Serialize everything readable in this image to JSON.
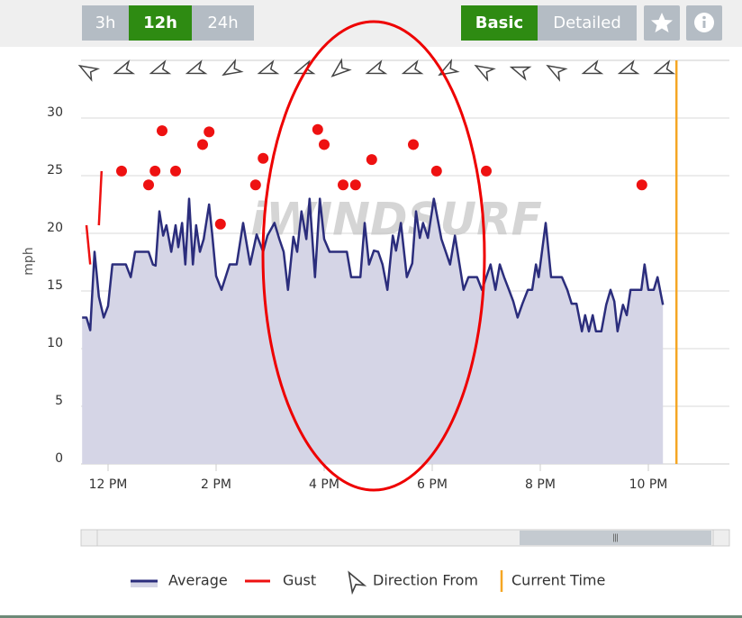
{
  "controls": {
    "ranges": [
      "3h",
      "12h",
      "24h"
    ],
    "active_range": 1,
    "views": [
      "Basic",
      "Detailed"
    ],
    "active_view": 0
  },
  "chart_data": {
    "type": "line",
    "watermark": "iWINDSURF",
    "y_label": "mph",
    "xlim": [
      11.5,
      23.5
    ],
    "ylim": [
      0,
      35
    ],
    "xticks": [
      {
        "value": 12,
        "label": "12 PM"
      },
      {
        "value": 14,
        "label": "2 PM"
      },
      {
        "value": 16,
        "label": "4 PM"
      },
      {
        "value": 18,
        "label": "6 PM"
      },
      {
        "value": 20,
        "label": "8 PM"
      },
      {
        "value": 22,
        "label": "10 PM"
      }
    ],
    "yticks": [
      0,
      5,
      10,
      15,
      20,
      25,
      30
    ],
    "grid": true,
    "series": [
      {
        "name": "Average",
        "type": "area",
        "color": "#2b2d7c",
        "fill": "#d5d5e6",
        "x": [
          11.52,
          11.6,
          11.67,
          11.75,
          11.83,
          11.92,
          12,
          12.08,
          12.33,
          12.42,
          12.5,
          12.75,
          12.83,
          12.88,
          12.95,
          13.02,
          13.08,
          13.17,
          13.25,
          13.3,
          13.37,
          13.43,
          13.5,
          13.57,
          13.63,
          13.7,
          13.77,
          13.87,
          13.93,
          14,
          14.1,
          14.25,
          14.38,
          14.5,
          14.63,
          14.75,
          14.87,
          14.95,
          15.08,
          15.17,
          15.25,
          15.33,
          15.43,
          15.5,
          15.58,
          15.67,
          15.73,
          15.83,
          15.92,
          16,
          16.1,
          16.42,
          16.5,
          16.67,
          16.75,
          16.83,
          16.92,
          17,
          17.08,
          17.17,
          17.27,
          17.33,
          17.42,
          17.53,
          17.63,
          17.7,
          17.77,
          17.83,
          17.92,
          18.03,
          18.17,
          18.33,
          18.42,
          18.58,
          18.67,
          18.83,
          18.92,
          19,
          19.08,
          19.17,
          19.25,
          19.33,
          19.42,
          19.5,
          19.58,
          19.67,
          19.77,
          19.85,
          19.92,
          19.97,
          20.1,
          20.2,
          20.4,
          20.5,
          20.58,
          20.67,
          20.77,
          20.83,
          20.9,
          20.97,
          21.03,
          21.13,
          21.22,
          21.3,
          21.37,
          21.43,
          21.53,
          21.6,
          21.67,
          21.87,
          21.93,
          22,
          22.1,
          22.17,
          22.27
        ],
        "values": [
          12.7,
          12.7,
          11.6,
          18.4,
          14.5,
          12.7,
          13.7,
          17.3,
          17.3,
          16.2,
          18.4,
          18.4,
          17.3,
          17.2,
          21.9,
          19.8,
          20.7,
          18.4,
          20.7,
          18.8,
          20.9,
          17.3,
          23.0,
          17.3,
          20.7,
          18.4,
          19.5,
          22.5,
          19.8,
          16.3,
          15.1,
          17.3,
          17.3,
          20.9,
          17.3,
          19.9,
          18.4,
          19.8,
          20.9,
          19.5,
          18.4,
          15.1,
          19.7,
          18.4,
          21.9,
          19.5,
          23.0,
          16.2,
          23.0,
          19.5,
          18.4,
          18.4,
          16.2,
          16.2,
          20.9,
          17.3,
          18.5,
          18.4,
          17.3,
          15.1,
          19.8,
          18.5,
          20.9,
          16.2,
          17.4,
          21.9,
          19.6,
          20.9,
          19.6,
          23.0,
          19.5,
          17.3,
          19.8,
          15.1,
          16.2,
          16.2,
          15.1,
          16.2,
          17.3,
          15.1,
          17.3,
          16.2,
          15.1,
          14.1,
          12.7,
          13.9,
          15.1,
          15.1,
          17.3,
          16.2,
          20.9,
          16.2,
          16.2,
          15.1,
          13.9,
          13.9,
          11.5,
          12.9,
          11.5,
          12.9,
          11.5,
          11.5,
          13.8,
          15.1,
          14.1,
          11.5,
          13.8,
          12.9,
          15.1,
          15.1,
          17.3,
          15.1,
          15.1,
          16.2,
          13.8
        ]
      },
      {
        "name": "Gust",
        "type": "line",
        "color": "#ee1111",
        "x": [
          11.6,
          11.67,
          11.75,
          11.83,
          11.88,
          12.1,
          12.25,
          12.5,
          12.75,
          12.8,
          12.87,
          12.93,
          13,
          13.1,
          13.25,
          13.5,
          13.75,
          13.8,
          13.87,
          14,
          14.08,
          14.4,
          14.73,
          14.8,
          14.87,
          15.5,
          15.88,
          15.94,
          16,
          16.2,
          16.35,
          16.45,
          16.58,
          16.7,
          16.88,
          17.3,
          17.65,
          17.9,
          18.08,
          18.5,
          19,
          20,
          21.88
        ],
        "values": [
          20.7,
          17.3,
          null,
          20.7,
          25.4,
          null,
          25.4,
          null,
          24.2,
          null,
          25.4,
          null,
          28.9,
          null,
          25.4,
          null,
          27.7,
          null,
          28.8,
          null,
          20.8,
          null,
          24.2,
          null,
          26.5,
          null,
          29.0,
          null,
          27.7,
          null,
          24.2,
          null,
          24.2,
          null,
          26.4,
          null,
          27.7,
          null,
          25.4,
          null,
          25.4,
          null,
          24.2
        ]
      },
      {
        "name": "Direction From",
        "type": "direction",
        "color": "#444444",
        "x": [
          11.62,
          12.28,
          12.95,
          13.62,
          14.28,
          14.95,
          15.62,
          16.28,
          16.95,
          17.62,
          18.28,
          18.95,
          19.62,
          20.28,
          20.95,
          21.62,
          22.28
        ],
        "values": [
          300,
          250,
          250,
          250,
          240,
          250,
          250,
          230,
          250,
          250,
          240,
          300,
          290,
          300,
          250,
          250,
          250
        ]
      }
    ],
    "current_time": {
      "name": "Current Time",
      "x": 22.52,
      "color": "#f5a623"
    }
  }
}
